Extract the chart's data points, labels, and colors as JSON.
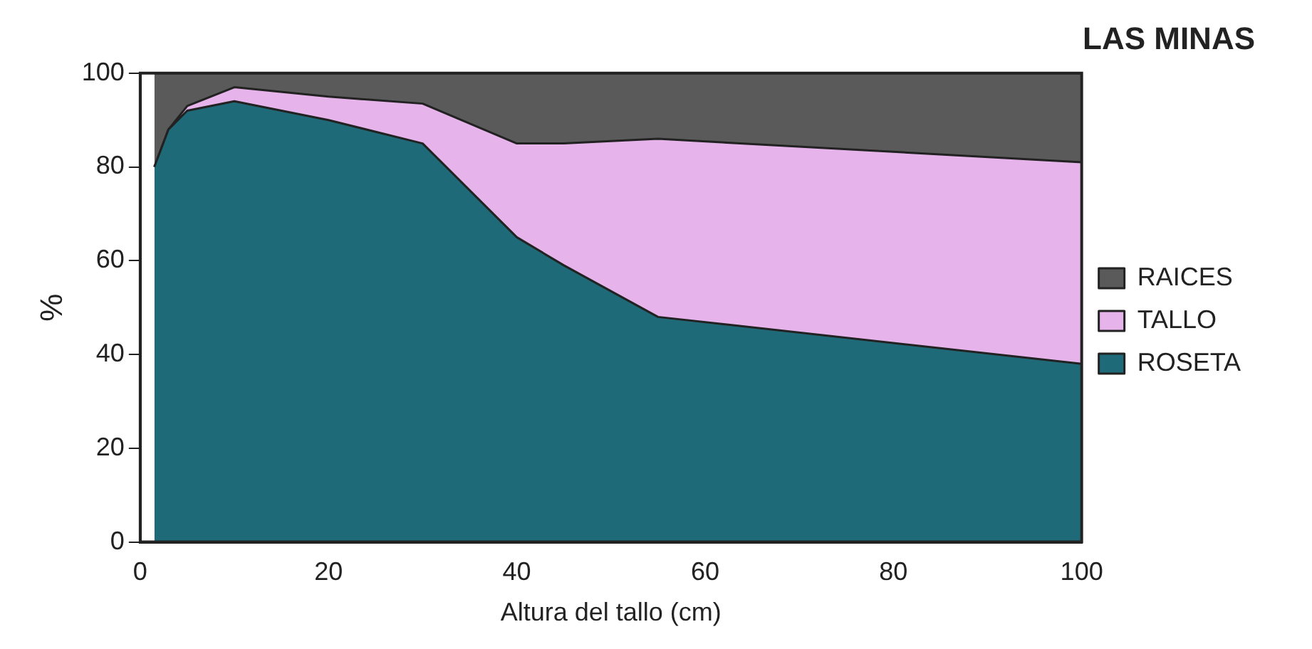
{
  "chart_data": {
    "type": "area",
    "title": "LAS MINAS",
    "xlabel": "Altura del tallo (cm)",
    "ylabel": "%",
    "stacked": true,
    "legend": "right",
    "grid": false,
    "x": [
      1.5,
      3,
      5,
      10,
      20,
      30,
      40,
      45,
      55,
      100
    ],
    "series": [
      {
        "name": "ROSETA",
        "color": "#1f6a78",
        "values": [
          80,
          88,
          92,
          94,
          90,
          85,
          65,
          59,
          48,
          38
        ]
      },
      {
        "name": "TALLO",
        "color": "#e6b3ea",
        "values": [
          0,
          0,
          1,
          3,
          5,
          8.5,
          20,
          26,
          38,
          43
        ]
      },
      {
        "name": "RAICES",
        "color": "#5a5a5a",
        "values": [
          20,
          12,
          7,
          3,
          5,
          6.5,
          15,
          15,
          14,
          19
        ]
      }
    ],
    "xlim": [
      0,
      100
    ],
    "xticks": [
      0,
      20,
      40,
      60,
      80,
      100
    ],
    "ylim": [
      0,
      100
    ],
    "yticks": [
      0,
      20,
      40,
      60,
      80,
      100
    ]
  }
}
